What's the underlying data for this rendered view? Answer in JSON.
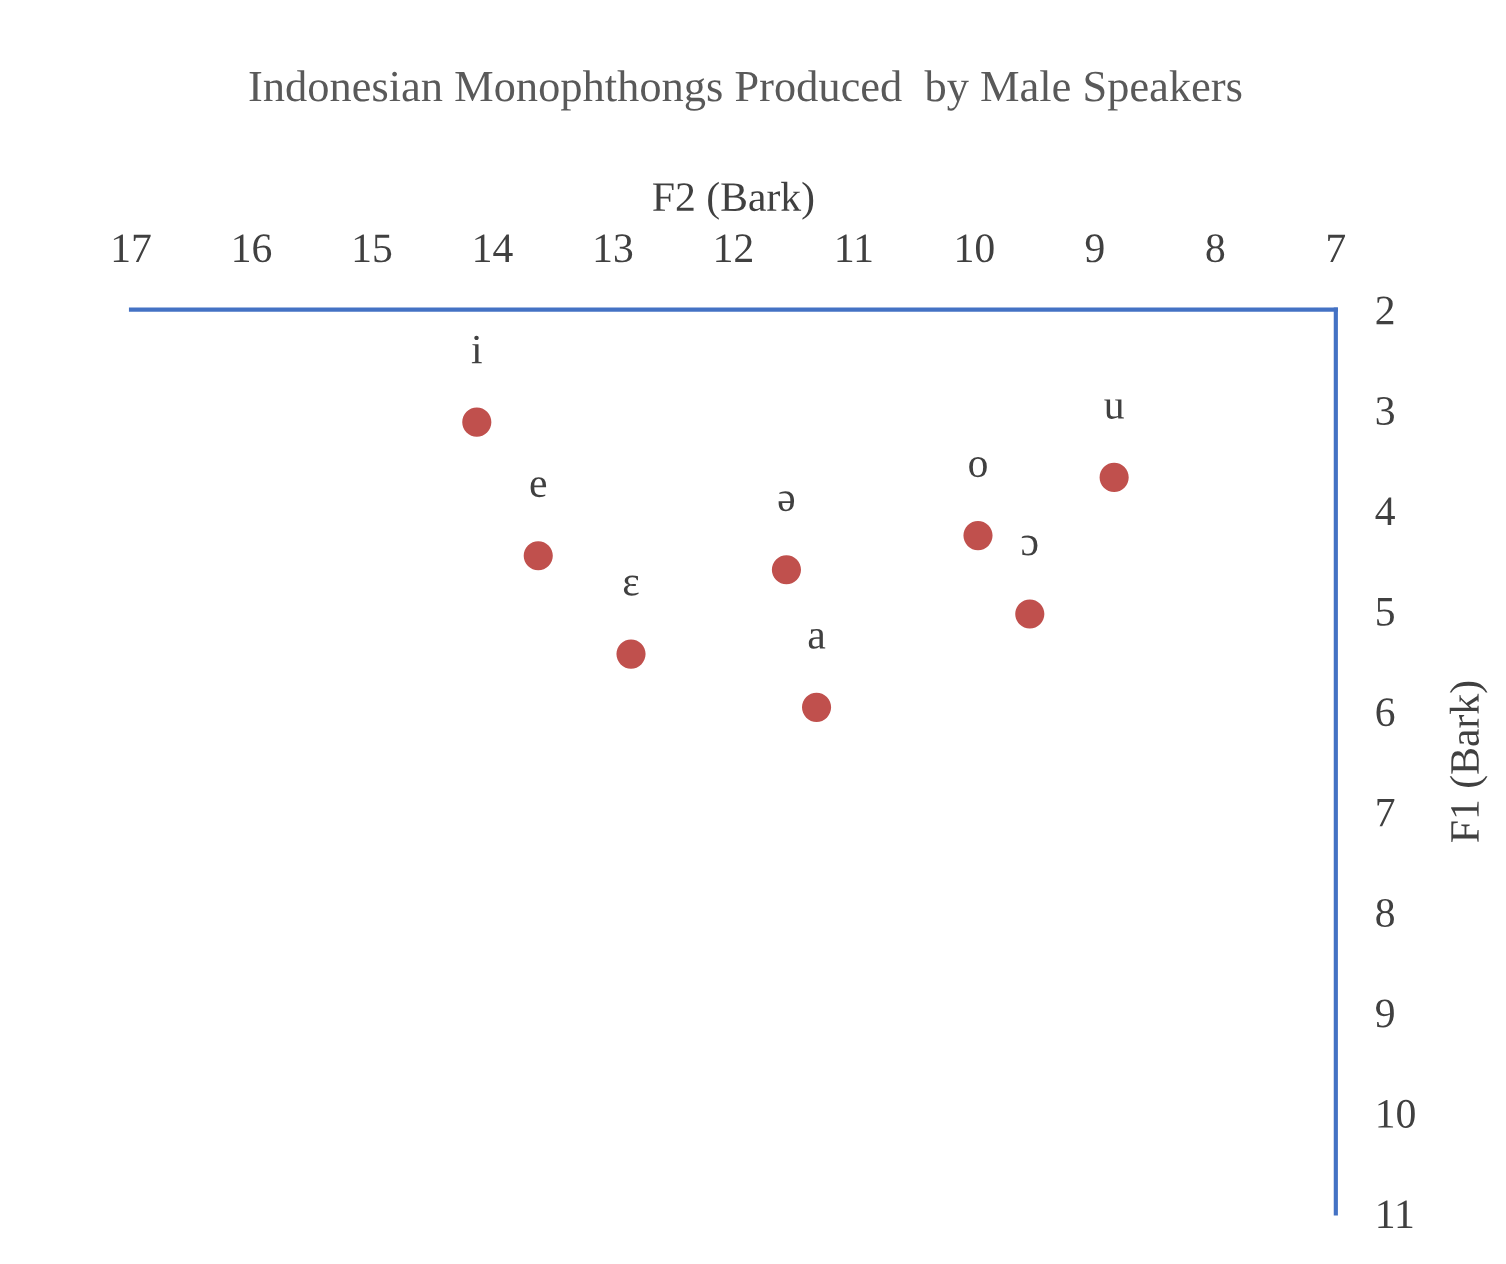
{
  "chart_data": {
    "type": "scatter",
    "title": "Indonesian Monophthongs Produced  by Male Speakers",
    "xlabel": "F2 (Bark)",
    "ylabel": "F1 (Bark)",
    "x": [
      14.13,
      13.62,
      12.85,
      11.56,
      11.31,
      9.97,
      9.54,
      8.84
    ],
    "series": [
      {
        "color": "#c0504d",
        "values": [
          3.12,
          4.45,
          5.43,
          4.59,
          5.96,
          4.25,
          5.03,
          3.67
        ]
      }
    ],
    "annotations": [
      {
        "text": "i",
        "x": 14.13,
        "y": 3.12
      },
      {
        "text": "e",
        "x": 13.62,
        "y": 4.45
      },
      {
        "text": "ɛ",
        "x": 12.85,
        "y": 5.43
      },
      {
        "text": "ə",
        "x": 11.56,
        "y": 4.59
      },
      {
        "text": "a",
        "x": 11.31,
        "y": 5.96
      },
      {
        "text": "o",
        "x": 9.97,
        "y": 4.25
      },
      {
        "text": "ɔ",
        "x": 9.54,
        "y": 5.03
      },
      {
        "text": "u",
        "x": 8.84,
        "y": 3.67
      }
    ],
    "xlim": [
      17,
      7
    ],
    "xticks": [
      17,
      16,
      15,
      14,
      13,
      12,
      11,
      10,
      9,
      8,
      7
    ],
    "ylim": [
      11,
      2
    ],
    "yticks": [
      2,
      3,
      4,
      5,
      6,
      7,
      8,
      9,
      10,
      11
    ],
    "marker": "circle",
    "grid": false,
    "legend": false
  }
}
